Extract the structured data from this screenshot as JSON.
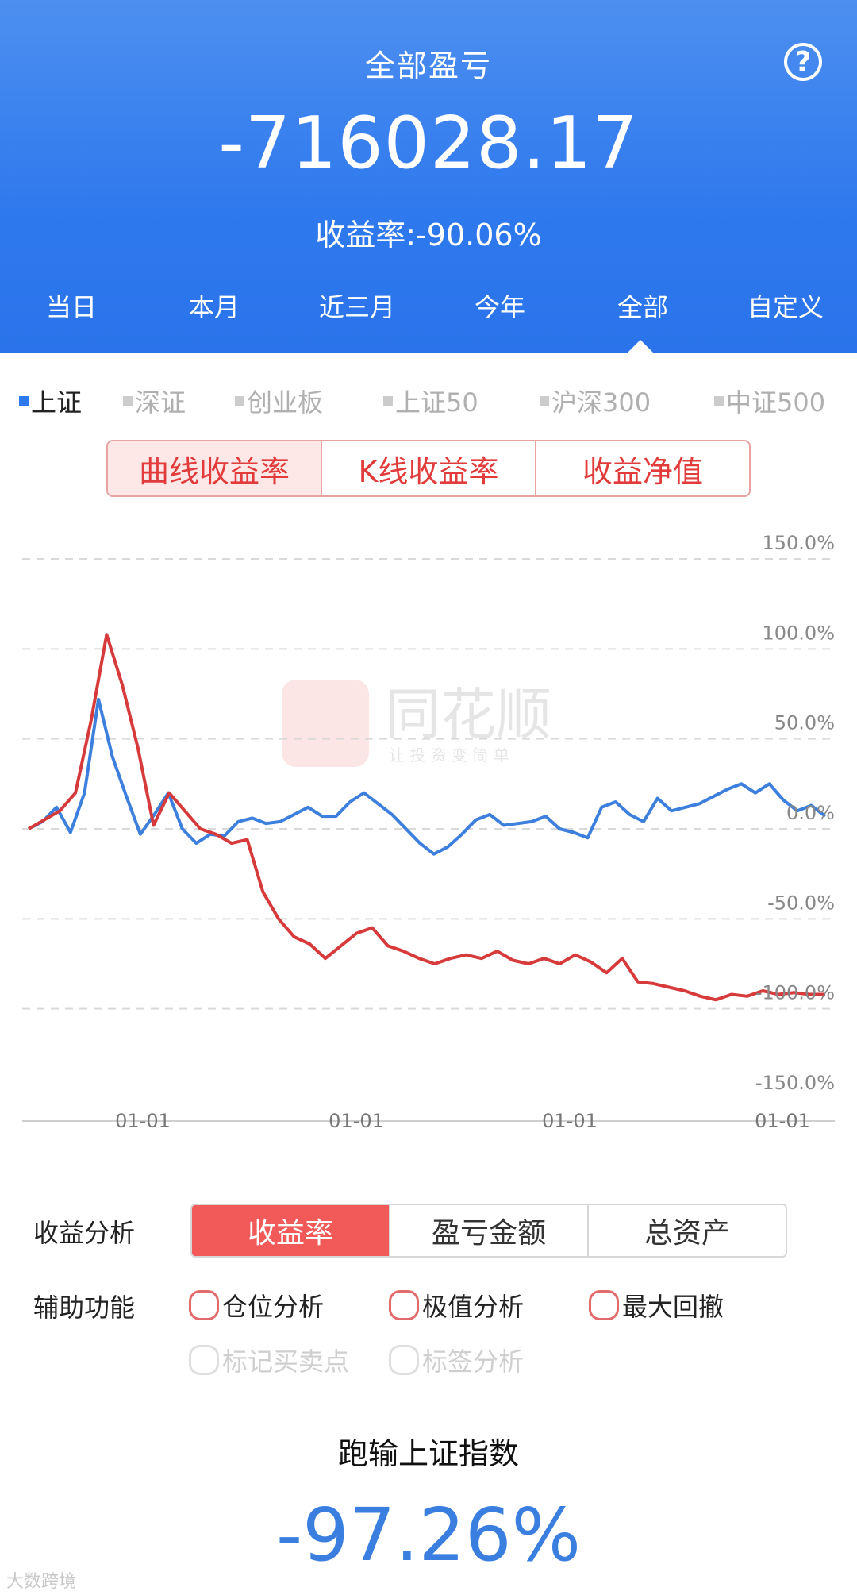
{
  "header": {
    "title": "全部盈亏",
    "help_icon": "?",
    "amount": "-716028.17",
    "rate": "收益率:-90.06%",
    "periods": [
      "当日",
      "本月",
      "近三月",
      "今年",
      "全部",
      "自定义"
    ],
    "active_period": "全部"
  },
  "indices": {
    "items": [
      "上证",
      "深证",
      "创业板",
      "上证50",
      "沪深300",
      "中证500"
    ],
    "active": "上证",
    "active_color": "#2f79ee"
  },
  "chart_tabs": [
    "曲线收益率",
    "K线收益率",
    "收益净值"
  ],
  "chart_tab_active": "曲线收益率",
  "watermark": {
    "text": "同花顺",
    "sub": "让 投 资 变 简 单"
  },
  "chart_data": {
    "type": "line",
    "y_ticks": [
      "150.0%",
      "100.0%",
      "50.0%",
      "0.0%",
      "-50.0%",
      "-100.0%",
      "-150.0%"
    ],
    "ylim": [
      -150,
      150
    ],
    "x_ticks": [
      "01-01",
      "01-01",
      "01-01",
      "01-01"
    ],
    "series": [
      {
        "color": "#3d7fdc",
        "values": [
          0,
          4,
          12,
          -2,
          20,
          72,
          40,
          18,
          -3,
          8,
          20,
          0,
          -8,
          -3,
          -4,
          4,
          6,
          3,
          4,
          8,
          12,
          7,
          7,
          15,
          20,
          14,
          8,
          0,
          -8,
          -14,
          -10,
          -3,
          5,
          8,
          2,
          3,
          4,
          7,
          0,
          -2,
          -5,
          12,
          15,
          8,
          4,
          17,
          10,
          12,
          14,
          18,
          22,
          25,
          20,
          25,
          16,
          10,
          13,
          7
        ]
      },
      {
        "color": "#d63a3a",
        "values": [
          0,
          5,
          10,
          20,
          60,
          108,
          80,
          45,
          2,
          20,
          10,
          0,
          -3,
          -8,
          -6,
          -35,
          -50,
          -60,
          -64,
          -72,
          -65,
          -58,
          -55,
          -65,
          -68,
          -72,
          -75,
          -72,
          -70,
          -72,
          -68,
          -73,
          -75,
          -72,
          -75,
          -70,
          -74,
          -80,
          -72,
          -85,
          -86,
          -88,
          -90,
          -93,
          -95,
          -92,
          -93,
          -90,
          -92,
          -91,
          -92,
          -92
        ]
      }
    ]
  },
  "analysis": {
    "label": "收益分析",
    "tabs": [
      "收益率",
      "盈亏金额",
      "总资产"
    ],
    "active": "收益率"
  },
  "auxiliary": {
    "label": "辅助功能",
    "options": [
      "仓位分析",
      "极值分析",
      "最大回撤"
    ],
    "disabled_options": [
      "标记买卖点",
      "标签分析"
    ]
  },
  "result": {
    "label": "跑输上证指数",
    "value": "-97.26%"
  },
  "corner_logo": "大数跨境"
}
